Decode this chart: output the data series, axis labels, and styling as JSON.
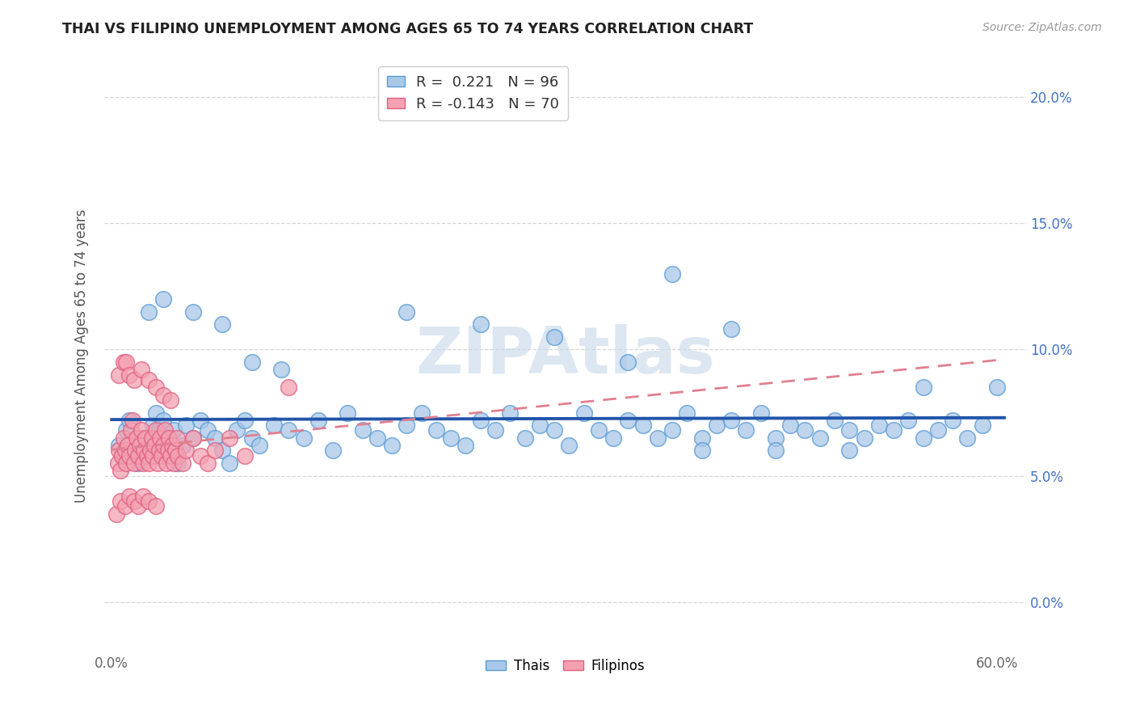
{
  "title": "THAI VS FILIPINO UNEMPLOYMENT AMONG AGES 65 TO 74 YEARS CORRELATION CHART",
  "source": "Source: ZipAtlas.com",
  "ylabel": "Unemployment Among Ages 65 to 74 years",
  "xlim": [
    -0.005,
    0.62
  ],
  "ylim": [
    -0.02,
    0.215
  ],
  "xticks": [
    0.0,
    0.1,
    0.2,
    0.3,
    0.4,
    0.5,
    0.6
  ],
  "xticklabels": [
    "0.0%",
    "",
    "",
    "",
    "",
    "",
    "60.0%"
  ],
  "yticks_right": [
    0.0,
    0.05,
    0.1,
    0.15,
    0.2
  ],
  "yticklabels_right": [
    "0.0%",
    "5.0%",
    "10.0%",
    "15.0%",
    "20.0%"
  ],
  "thai_color": "#a8c8e8",
  "thai_edge": "#5b9bd5",
  "filipino_color": "#f4a0b0",
  "filipino_edge": "#e06080",
  "thai_R": 0.221,
  "thai_N": 96,
  "filipino_R": -0.143,
  "filipino_N": 70,
  "thai_line_color": "#2255aa",
  "filipino_line_color": "#f0a0b0",
  "watermark": "ZIPAtlas",
  "legend_thai_label": "Thais",
  "legend_filipino_label": "Filipinos",
  "thai_scatter_x": [
    0.005,
    0.007,
    0.01,
    0.012,
    0.015,
    0.018,
    0.02,
    0.022,
    0.025,
    0.028,
    0.03,
    0.032,
    0.035,
    0.038,
    0.04,
    0.042,
    0.045,
    0.048,
    0.05,
    0.055,
    0.06,
    0.065,
    0.07,
    0.075,
    0.08,
    0.085,
    0.09,
    0.095,
    0.1,
    0.11,
    0.12,
    0.13,
    0.14,
    0.15,
    0.16,
    0.17,
    0.18,
    0.19,
    0.2,
    0.21,
    0.22,
    0.23,
    0.24,
    0.25,
    0.26,
    0.27,
    0.28,
    0.29,
    0.3,
    0.31,
    0.32,
    0.33,
    0.34,
    0.35,
    0.36,
    0.37,
    0.38,
    0.39,
    0.4,
    0.41,
    0.42,
    0.43,
    0.44,
    0.45,
    0.46,
    0.47,
    0.48,
    0.49,
    0.5,
    0.51,
    0.52,
    0.53,
    0.54,
    0.55,
    0.56,
    0.57,
    0.58,
    0.59,
    0.6,
    0.025,
    0.035,
    0.055,
    0.075,
    0.095,
    0.115,
    0.2,
    0.25,
    0.3,
    0.35,
    0.4,
    0.45,
    0.5,
    0.38,
    0.42,
    0.55
  ],
  "thai_scatter_y": [
    0.062,
    0.058,
    0.068,
    0.072,
    0.06,
    0.055,
    0.065,
    0.058,
    0.062,
    0.07,
    0.075,
    0.068,
    0.072,
    0.065,
    0.06,
    0.068,
    0.055,
    0.062,
    0.07,
    0.065,
    0.072,
    0.068,
    0.065,
    0.06,
    0.055,
    0.068,
    0.072,
    0.065,
    0.062,
    0.07,
    0.068,
    0.065,
    0.072,
    0.06,
    0.075,
    0.068,
    0.065,
    0.062,
    0.07,
    0.075,
    0.068,
    0.065,
    0.062,
    0.072,
    0.068,
    0.075,
    0.065,
    0.07,
    0.068,
    0.062,
    0.075,
    0.068,
    0.065,
    0.072,
    0.07,
    0.065,
    0.068,
    0.075,
    0.065,
    0.07,
    0.072,
    0.068,
    0.075,
    0.065,
    0.07,
    0.068,
    0.065,
    0.072,
    0.068,
    0.065,
    0.07,
    0.068,
    0.072,
    0.065,
    0.068,
    0.072,
    0.065,
    0.07,
    0.085,
    0.115,
    0.12,
    0.115,
    0.11,
    0.095,
    0.092,
    0.115,
    0.11,
    0.105,
    0.095,
    0.06,
    0.06,
    0.06,
    0.13,
    0.108,
    0.085
  ],
  "filipino_scatter_x": [
    0.004,
    0.005,
    0.006,
    0.007,
    0.008,
    0.009,
    0.01,
    0.011,
    0.012,
    0.013,
    0.014,
    0.015,
    0.016,
    0.017,
    0.018,
    0.019,
    0.02,
    0.021,
    0.022,
    0.023,
    0.024,
    0.025,
    0.026,
    0.027,
    0.028,
    0.029,
    0.03,
    0.031,
    0.032,
    0.033,
    0.034,
    0.035,
    0.036,
    0.037,
    0.038,
    0.039,
    0.04,
    0.041,
    0.042,
    0.043,
    0.044,
    0.045,
    0.048,
    0.05,
    0.055,
    0.06,
    0.065,
    0.07,
    0.08,
    0.09,
    0.005,
    0.008,
    0.01,
    0.012,
    0.015,
    0.02,
    0.025,
    0.03,
    0.035,
    0.04,
    0.003,
    0.006,
    0.009,
    0.012,
    0.015,
    0.018,
    0.021,
    0.025,
    0.03,
    0.12
  ],
  "filipino_scatter_y": [
    0.055,
    0.06,
    0.052,
    0.058,
    0.065,
    0.06,
    0.055,
    0.062,
    0.058,
    0.068,
    0.072,
    0.055,
    0.06,
    0.065,
    0.058,
    0.062,
    0.068,
    0.055,
    0.06,
    0.065,
    0.058,
    0.055,
    0.06,
    0.065,
    0.058,
    0.062,
    0.068,
    0.055,
    0.06,
    0.065,
    0.058,
    0.062,
    0.068,
    0.055,
    0.06,
    0.065,
    0.058,
    0.062,
    0.055,
    0.06,
    0.065,
    0.058,
    0.055,
    0.06,
    0.065,
    0.058,
    0.055,
    0.06,
    0.065,
    0.058,
    0.09,
    0.095,
    0.095,
    0.09,
    0.088,
    0.092,
    0.088,
    0.085,
    0.082,
    0.08,
    0.035,
    0.04,
    0.038,
    0.042,
    0.04,
    0.038,
    0.042,
    0.04,
    0.038,
    0.085
  ]
}
